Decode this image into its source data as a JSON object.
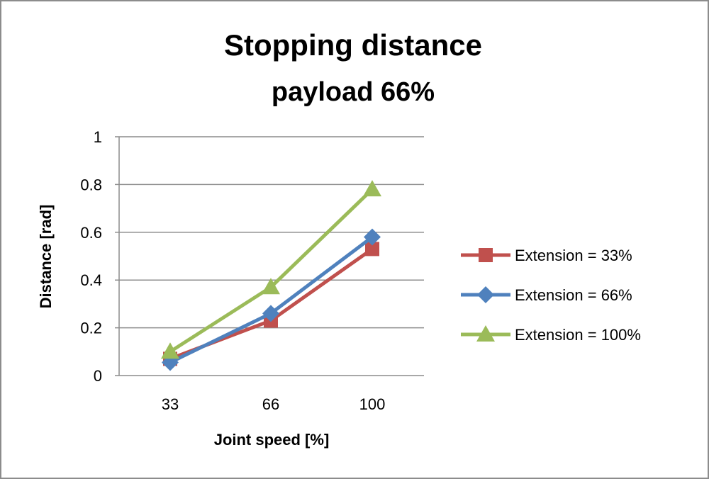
{
  "chart_data": {
    "type": "line",
    "title": "Stopping distance",
    "subtitle": "payload 66%",
    "xlabel": "Joint speed [%]",
    "ylabel": "Distance [rad]",
    "categories": [
      "33",
      "66",
      "100"
    ],
    "yticks": [
      "0",
      "0.2",
      "0.4",
      "0.6",
      "0.8",
      "1"
    ],
    "ylim": [
      0,
      1
    ],
    "grid": true,
    "legend_position": "right",
    "series": [
      {
        "name": "Extension = 33%",
        "values": [
          0.07,
          0.23,
          0.53
        ],
        "color": "#c0504d",
        "marker": "square"
      },
      {
        "name": "Extension = 66%",
        "values": [
          0.055,
          0.26,
          0.58
        ],
        "color": "#4f81bd",
        "marker": "diamond"
      },
      {
        "name": "Extension = 100%",
        "values": [
          0.1,
          0.37,
          0.78
        ],
        "color": "#9bbb59",
        "marker": "triangle"
      }
    ]
  }
}
